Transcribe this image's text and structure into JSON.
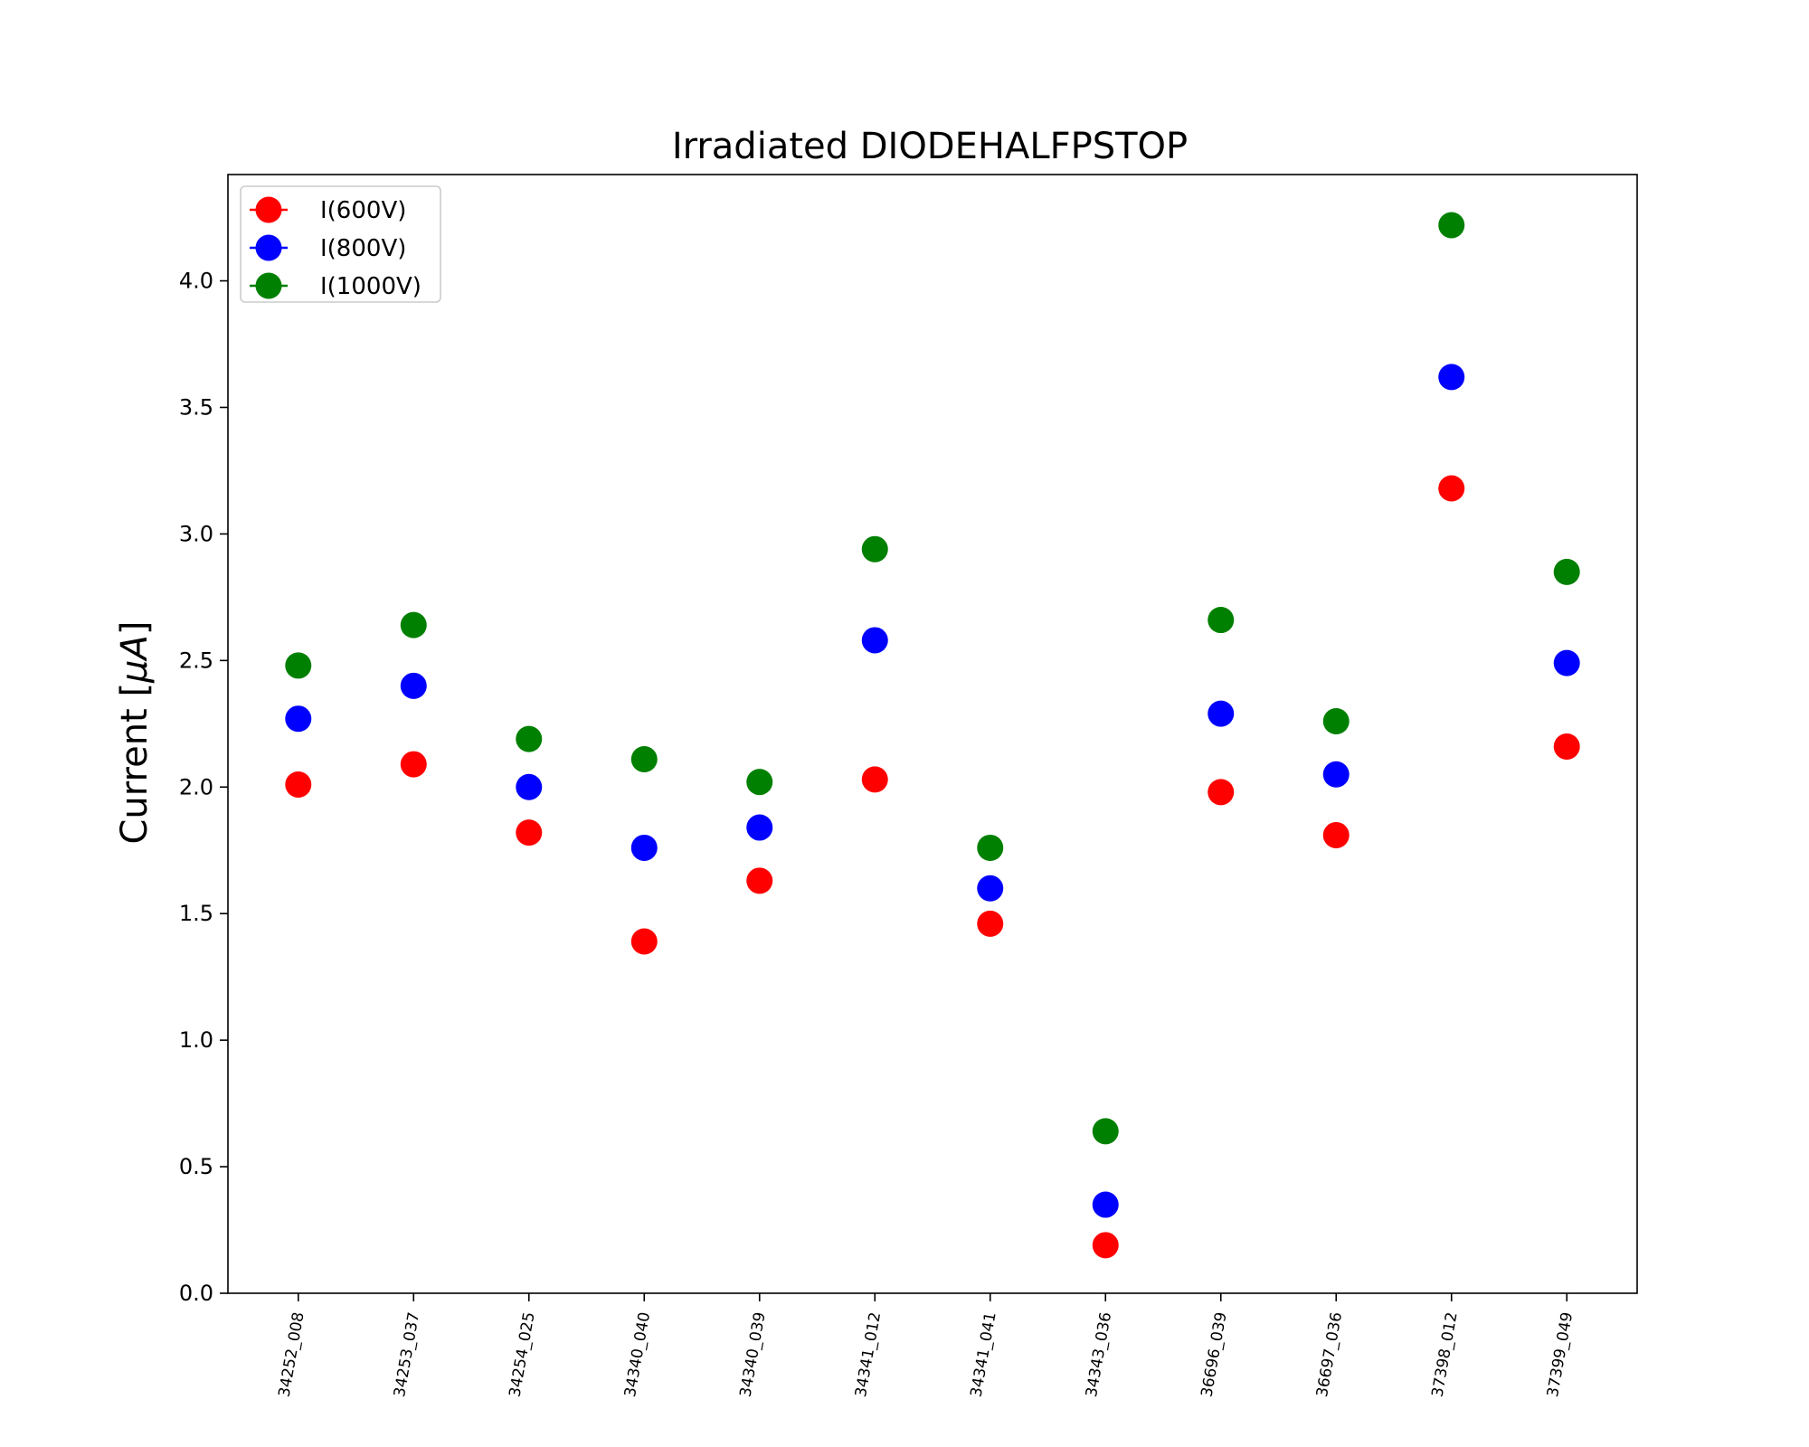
{
  "chart_data": {
    "type": "scatter",
    "title": "Irradiated DIODEHALFPSTOP",
    "xlabel": "",
    "ylabel": "Current [μA]",
    "ylabel_text": "Current [",
    "ylabel_mu": "μ",
    "ylabel_unit": "A",
    "ylabel_close": "]",
    "ylim": [
      0,
      4.42
    ],
    "yticks": [
      "0.0",
      "0.5",
      "1.0",
      "1.5",
      "2.0",
      "2.5",
      "3.0",
      "3.5",
      "4.0"
    ],
    "grid": false,
    "legend_position": "top-left",
    "categories": [
      "34252_008",
      "34253_037",
      "34254_025",
      "34340_040",
      "34340_039",
      "34341_012",
      "34341_041",
      "34343_036",
      "36696_039",
      "36697_036",
      "37398_012",
      "37399_049"
    ],
    "series": [
      {
        "name": "I(600V)",
        "color": "#ff0000",
        "values": [
          2.01,
          2.09,
          1.82,
          1.39,
          1.63,
          2.03,
          1.46,
          0.19,
          1.98,
          1.81,
          3.18,
          2.16
        ]
      },
      {
        "name": "I(800V)",
        "color": "#0000ff",
        "values": [
          2.27,
          2.4,
          2.0,
          1.76,
          1.84,
          2.58,
          1.6,
          0.35,
          2.29,
          2.05,
          3.62,
          2.49
        ]
      },
      {
        "name": "I(1000V)",
        "color": "#008000",
        "values": [
          2.48,
          2.64,
          2.19,
          2.11,
          2.02,
          2.94,
          1.76,
          0.64,
          2.66,
          2.26,
          4.22,
          2.85
        ]
      }
    ]
  }
}
